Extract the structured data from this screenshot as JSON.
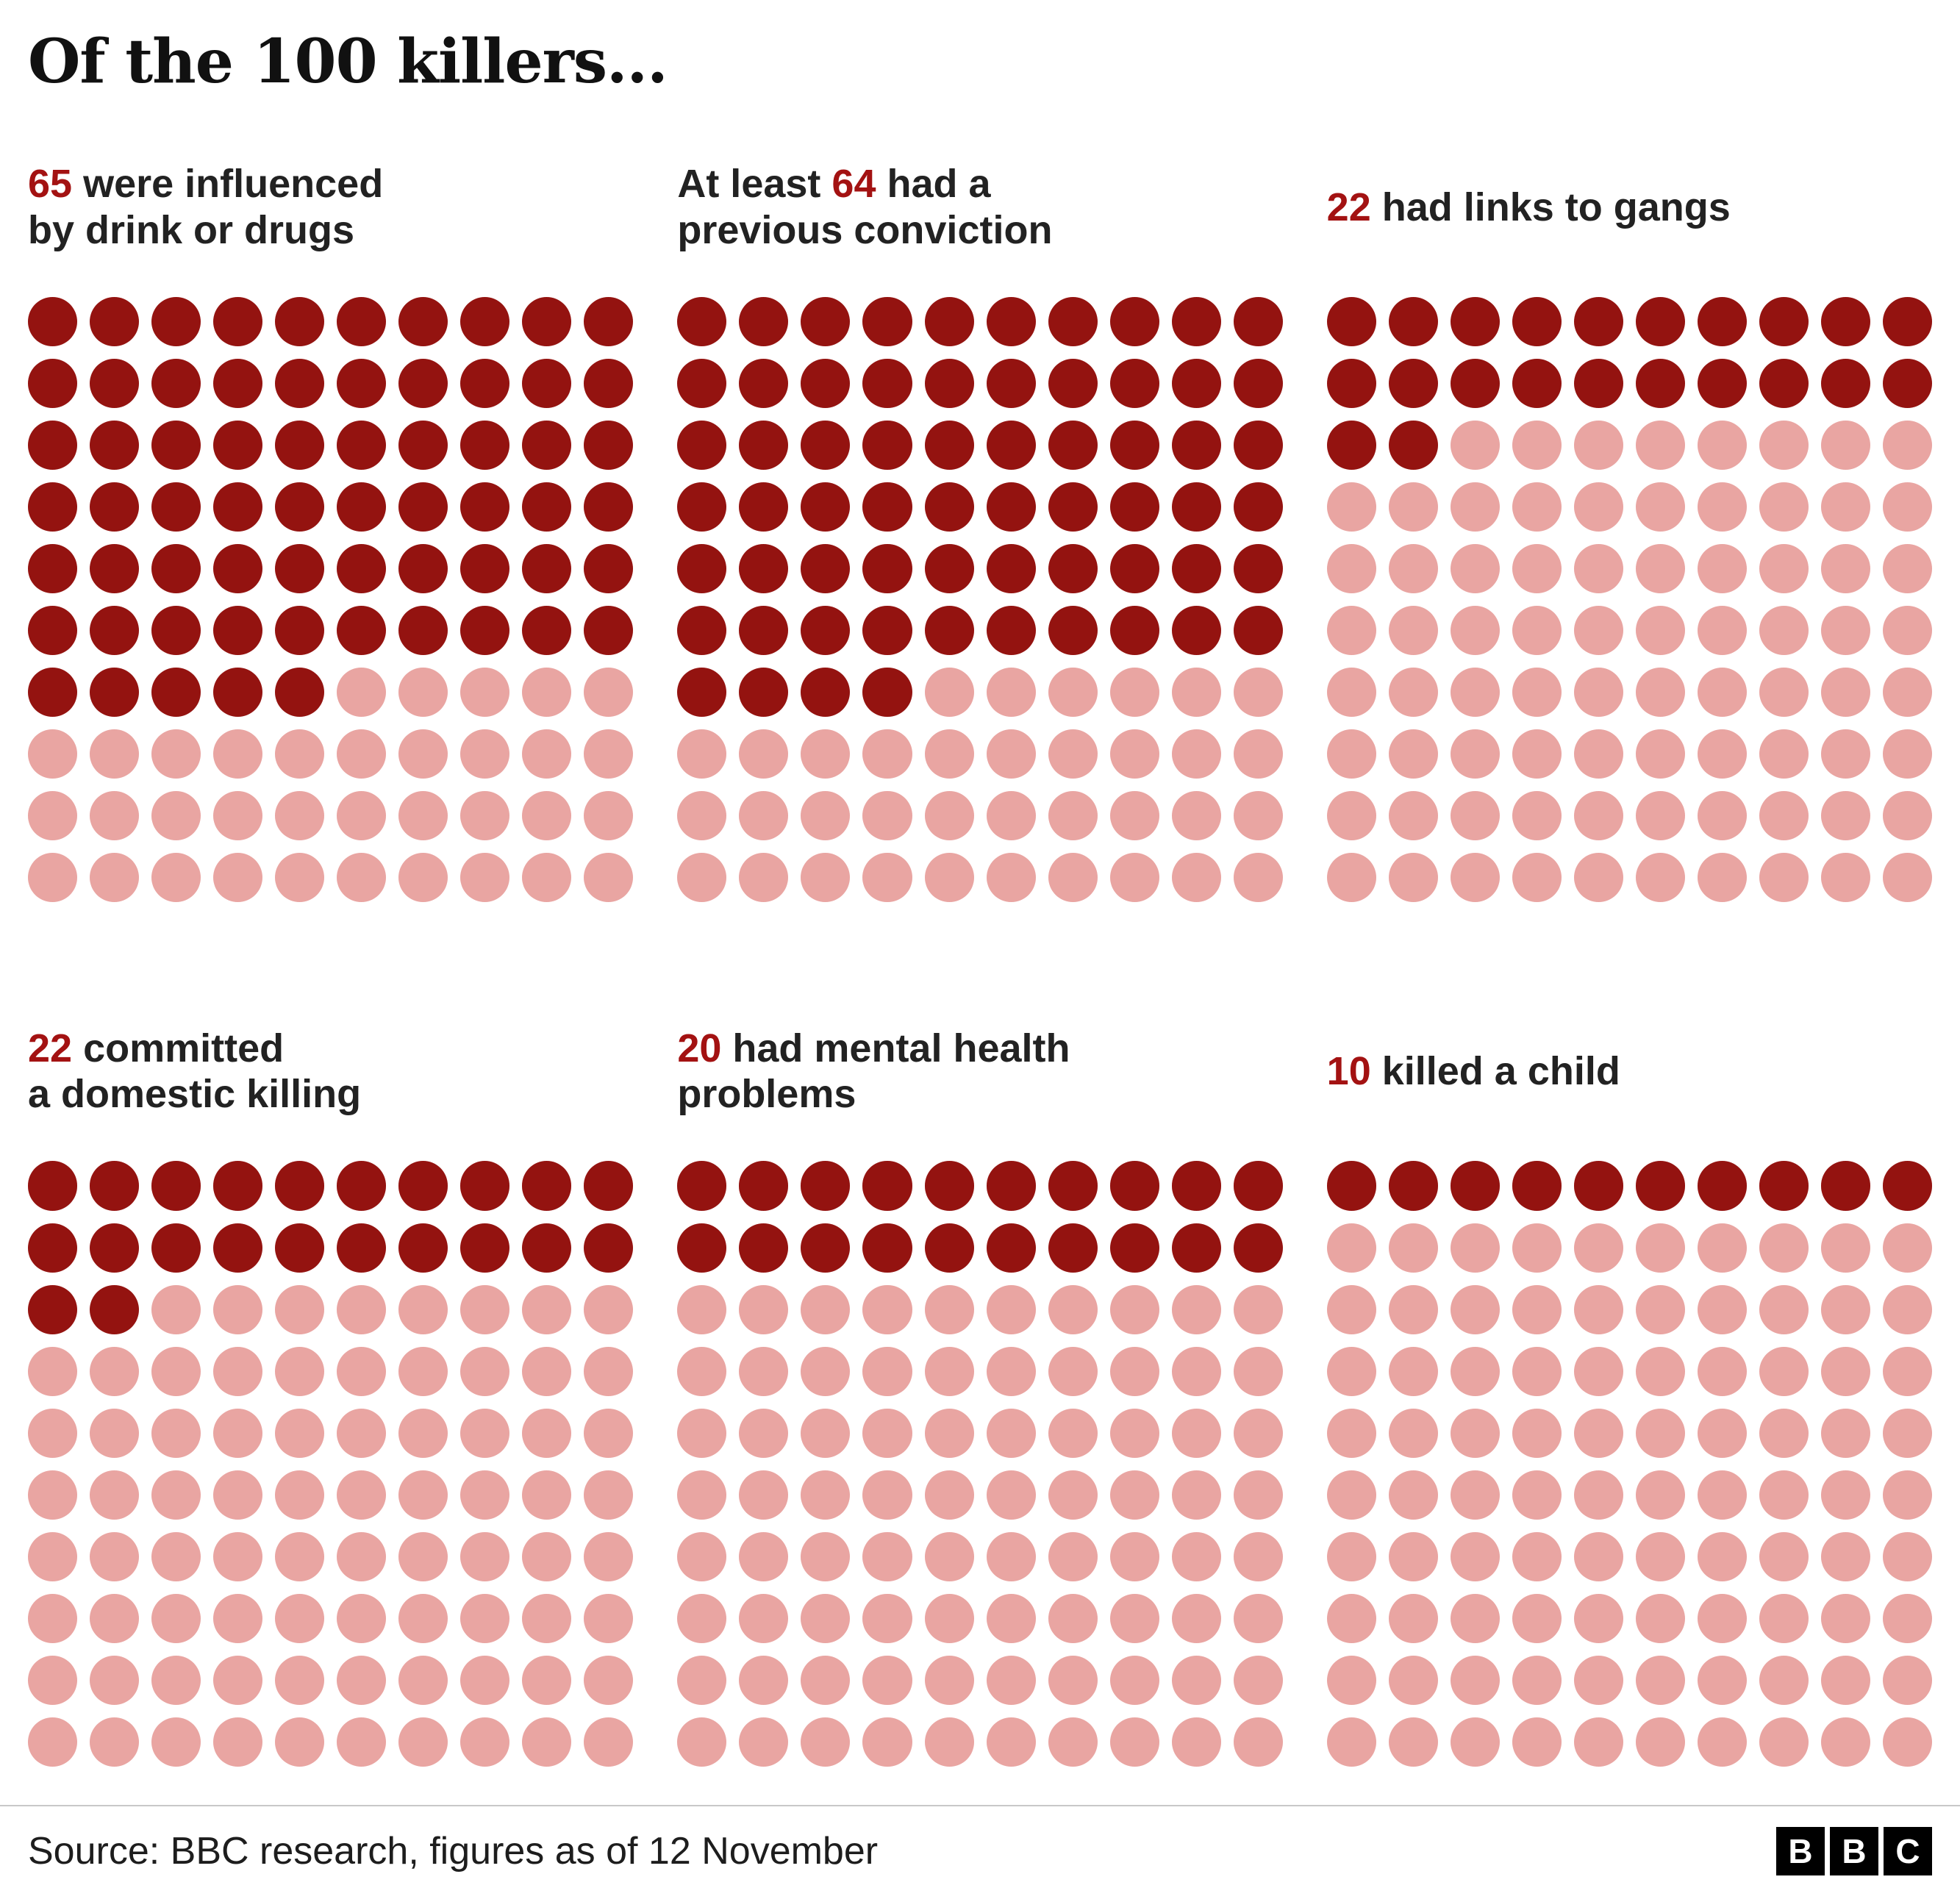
{
  "title": "Of the 100 killers...",
  "colors": {
    "filled": "#941310",
    "empty": "#e9a5a2",
    "number": "#a31212",
    "text": "#222222"
  },
  "footer": {
    "source": "Source: BBC research, figures as of 12 November",
    "logo_letters": [
      "B",
      "B",
      "C"
    ]
  },
  "chart_data": {
    "type": "waffle",
    "total": 100,
    "grid_rows": 10,
    "grid_cols": 10,
    "fill_order": "left-to-right, top-to-bottom",
    "filled_meaning": "killers matching the statistic",
    "empty_meaning": "remaining killers out of 100",
    "series": [
      {
        "label": "65 were influenced by drink or drugs",
        "value": 65,
        "heading_lines": [
          [
            {
              "t": "65",
              "hl": true
            },
            {
              "t": " were influenced"
            }
          ],
          [
            {
              "t": "by drink or drugs"
            }
          ]
        ]
      },
      {
        "label": "At least 64 had a previous conviction",
        "value": 64,
        "heading_lines": [
          [
            {
              "t": "At least "
            },
            {
              "t": "64",
              "hl": true
            },
            {
              "t": " had a"
            }
          ],
          [
            {
              "t": "previous conviction"
            }
          ]
        ]
      },
      {
        "label": "22 had links to gangs",
        "value": 22,
        "heading_lines": [
          [
            {
              "t": "22",
              "hl": true
            },
            {
              "t": " had links to gangs"
            }
          ]
        ]
      },
      {
        "label": "22 committed a domestic killing",
        "value": 22,
        "heading_lines": [
          [
            {
              "t": "22",
              "hl": true
            },
            {
              "t": " committed"
            }
          ],
          [
            {
              "t": "a domestic killing"
            }
          ]
        ]
      },
      {
        "label": "20 had mental health problems",
        "value": 20,
        "heading_lines": [
          [
            {
              "t": "20",
              "hl": true
            },
            {
              "t": " had mental health"
            }
          ],
          [
            {
              "t": "problems"
            }
          ]
        ]
      },
      {
        "label": "10 killed a child",
        "value": 10,
        "heading_lines": [
          [
            {
              "t": "10",
              "hl": true
            },
            {
              "t": " killed a child"
            }
          ]
        ]
      }
    ]
  }
}
